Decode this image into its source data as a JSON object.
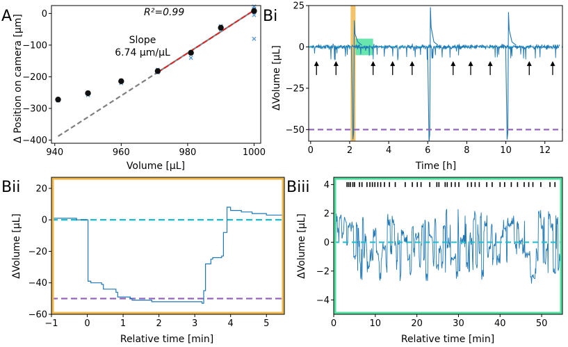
{
  "colors": {
    "blue": "#1f77b4",
    "cyan": "#17becf",
    "purple": "#9467bd",
    "red": "#d62728",
    "gray": "#7f7f7f",
    "orange": "#f0b84c",
    "green": "#4fe0a0"
  },
  "chart_data": [
    {
      "panel": "A",
      "type": "scatter",
      "xlabel": "Volume [µL]",
      "ylabel": "Δ Position on camera [µm]",
      "xlim": [
        939,
        1002
      ],
      "ylim": [
        -410,
        25
      ],
      "xticks": [
        940,
        960,
        980,
        1000
      ],
      "yticks": [
        0,
        -100,
        -200,
        -300,
        -400
      ],
      "mean_points": [
        {
          "x": 941,
          "y": -272
        },
        {
          "x": 950,
          "y": -252
        },
        {
          "x": 960,
          "y": -214
        },
        {
          "x": 971,
          "y": -182
        },
        {
          "x": 981,
          "y": -124
        },
        {
          "x": 990,
          "y": -45
        },
        {
          "x": 1000,
          "y": 8
        }
      ],
      "raw_points": [
        {
          "x": 941,
          "y": -275
        },
        {
          "x": 950,
          "y": -258
        },
        {
          "x": 950,
          "y": -250
        },
        {
          "x": 960,
          "y": -220
        },
        {
          "x": 960,
          "y": -212
        },
        {
          "x": 971,
          "y": -186
        },
        {
          "x": 971,
          "y": -178
        },
        {
          "x": 981,
          "y": -140
        },
        {
          "x": 981,
          "y": -126
        },
        {
          "x": 990,
          "y": -50
        },
        {
          "x": 990,
          "y": -40
        },
        {
          "x": 1000,
          "y": 22
        },
        {
          "x": 1000,
          "y": 15
        },
        {
          "x": 1000,
          "y": -5
        },
        {
          "x": 1000,
          "y": -80
        }
      ],
      "fit_line_full": {
        "x": [
          941,
          1000
        ],
        "y": [
          -388,
          10
        ]
      },
      "fit_line_red": {
        "x": [
          971,
          1000
        ],
        "y": [
          -186,
          10
        ]
      },
      "r2_label": "R²=0.99",
      "slope_label": "Slope",
      "slope_value": "6.74 µm/µL"
    },
    {
      "panel": "Bi",
      "type": "line",
      "xlabel": "Time [h]",
      "ylabel": "ΔVolume [µL]",
      "xlim": [
        -0.1,
        12.9
      ],
      "ylim": [
        -57,
        25
      ],
      "xticks": [
        0,
        2,
        4,
        6,
        8,
        10,
        12
      ],
      "yticks": [
        25,
        0,
        -25,
        -50
      ],
      "threshold": -50,
      "baseline": 0,
      "spikes": [
        {
          "t": 2.2,
          "lo": -56,
          "hi": 16
        },
        {
          "t": 6.1,
          "lo": -57,
          "hi": 24
        },
        {
          "t": 10.1,
          "lo": -56,
          "hi": 21
        }
      ],
      "arrows": [
        0.3,
        1.3,
        3.2,
        4.2,
        5.2,
        7.3,
        8.2,
        9.2,
        11.2,
        12.4
      ],
      "highlight_orange": [
        2.05,
        2.3
      ],
      "highlight_green": [
        2.3,
        3.2
      ]
    },
    {
      "panel": "Bii",
      "type": "line",
      "xlabel": "Relative time [min]",
      "ylabel": "ΔVolume [µL]",
      "xlim": [
        -1,
        5.5
      ],
      "ylim": [
        -60,
        27
      ],
      "xticks": [
        -1,
        0,
        1,
        2,
        3,
        4,
        5
      ],
      "yticks": [
        20,
        0,
        -20,
        -40,
        -60
      ],
      "threshold": -50,
      "baseline": 0,
      "x": [
        -1,
        -0.5,
        -0.3,
        0,
        0.02,
        0.1,
        0.4,
        0.45,
        0.8,
        0.85,
        1.2,
        1.25,
        1.8,
        2.5,
        3.2,
        3.25,
        3.3,
        3.45,
        3.5,
        3.75,
        3.8,
        3.9,
        4.0,
        4.3,
        4.6,
        5.0,
        5.5
      ],
      "y": [
        1,
        1,
        0,
        0,
        -39,
        -40,
        -41,
        -44,
        -46,
        -49,
        -50,
        -51,
        -52,
        -52,
        -53,
        -45,
        -28,
        -25,
        -24,
        -23,
        -8,
        8,
        6,
        5,
        4,
        3,
        3
      ]
    },
    {
      "panel": "Biii",
      "type": "line",
      "xlabel": "Relative time [min]",
      "ylabel": "ΔVolume [µL]",
      "xlim": [
        0,
        55
      ],
      "ylim": [
        -5,
        4.5
      ],
      "xticks": [
        0,
        10,
        20,
        30,
        40,
        50
      ],
      "yticks": [
        4,
        2,
        0,
        -2,
        -4
      ],
      "baseline": 0,
      "event_ticks": [
        3.2,
        3.6,
        4.0,
        4.6,
        5.0,
        6.2,
        6.8,
        8.0,
        8.7,
        9.3,
        9.9,
        10.6,
        11.3,
        12.2,
        13.4,
        14.8,
        17.2,
        18.9,
        20.1,
        21.0,
        23.1,
        24.8,
        25.3,
        26.8,
        27.3,
        28.3,
        29.2,
        30.1,
        32.2,
        33.1,
        34.0,
        35.0,
        36.8,
        38.1,
        40.0,
        41.1,
        42.7,
        44.2,
        45.8,
        46.9,
        47.9,
        49.8,
        52.0,
        53.2
      ],
      "event_level": 4
    }
  ],
  "panels": {
    "A": "A",
    "Bi": "Bi",
    "Bii": "Bii",
    "Biii": "Biii"
  }
}
